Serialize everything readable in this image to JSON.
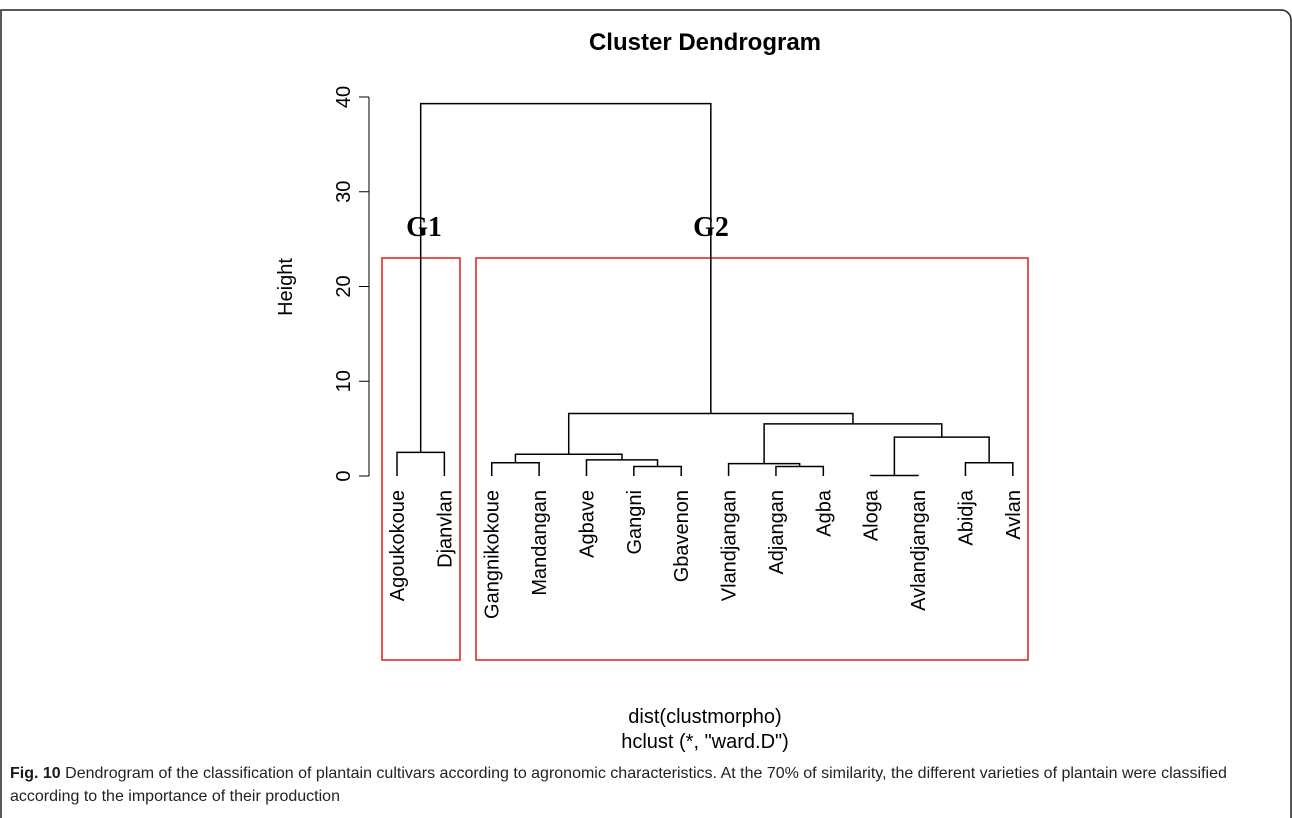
{
  "chart_data": {
    "type": "dendrogram",
    "title": "Cluster Dendrogram",
    "ylabel": "Height",
    "xlabel": "dist(clustmorpho)",
    "sublabel": "hclust (*, \"ward.D\")",
    "labels": [
      "Agoukokoue",
      "Djanvlan",
      "Gangnikokoue",
      "Mandangan",
      "Agbave",
      "Gangni",
      "Gbavenon",
      "Vlandjangan",
      "Adjangan",
      "Agba",
      "Aloga",
      "Avlandjangan",
      "Abidja",
      "Avlan"
    ],
    "merge": [
      [
        -1,
        -2
      ],
      [
        -3,
        -4
      ],
      [
        -6,
        -7
      ],
      [
        -5,
        3
      ],
      [
        2,
        4
      ],
      [
        -9,
        -10
      ],
      [
        -8,
        6
      ],
      [
        -11,
        -12
      ],
      [
        -13,
        -14
      ],
      [
        8,
        9
      ],
      [
        7,
        10
      ],
      [
        5,
        11
      ],
      [
        1,
        12
      ]
    ],
    "height": [
      2.5,
      1.4,
      1.0,
      1.7,
      2.3,
      1.0,
      1.3,
      0.05,
      1.4,
      4.1,
      5.5,
      6.6,
      39.3
    ],
    "ylim": [
      0,
      40
    ],
    "yticks": [
      0,
      10,
      20,
      30,
      40
    ],
    "annotations": [
      "G1",
      "G2"
    ],
    "color": "#000000",
    "box_color": "#e31a1c"
  },
  "caption": {
    "label": "Fig. 10",
    "text": "Dendrogram of the classification of plantain cultivars according to agronomic characteristics. At the 70% of similarity, the different varieties of plantain were classified according to the importance of their production"
  }
}
